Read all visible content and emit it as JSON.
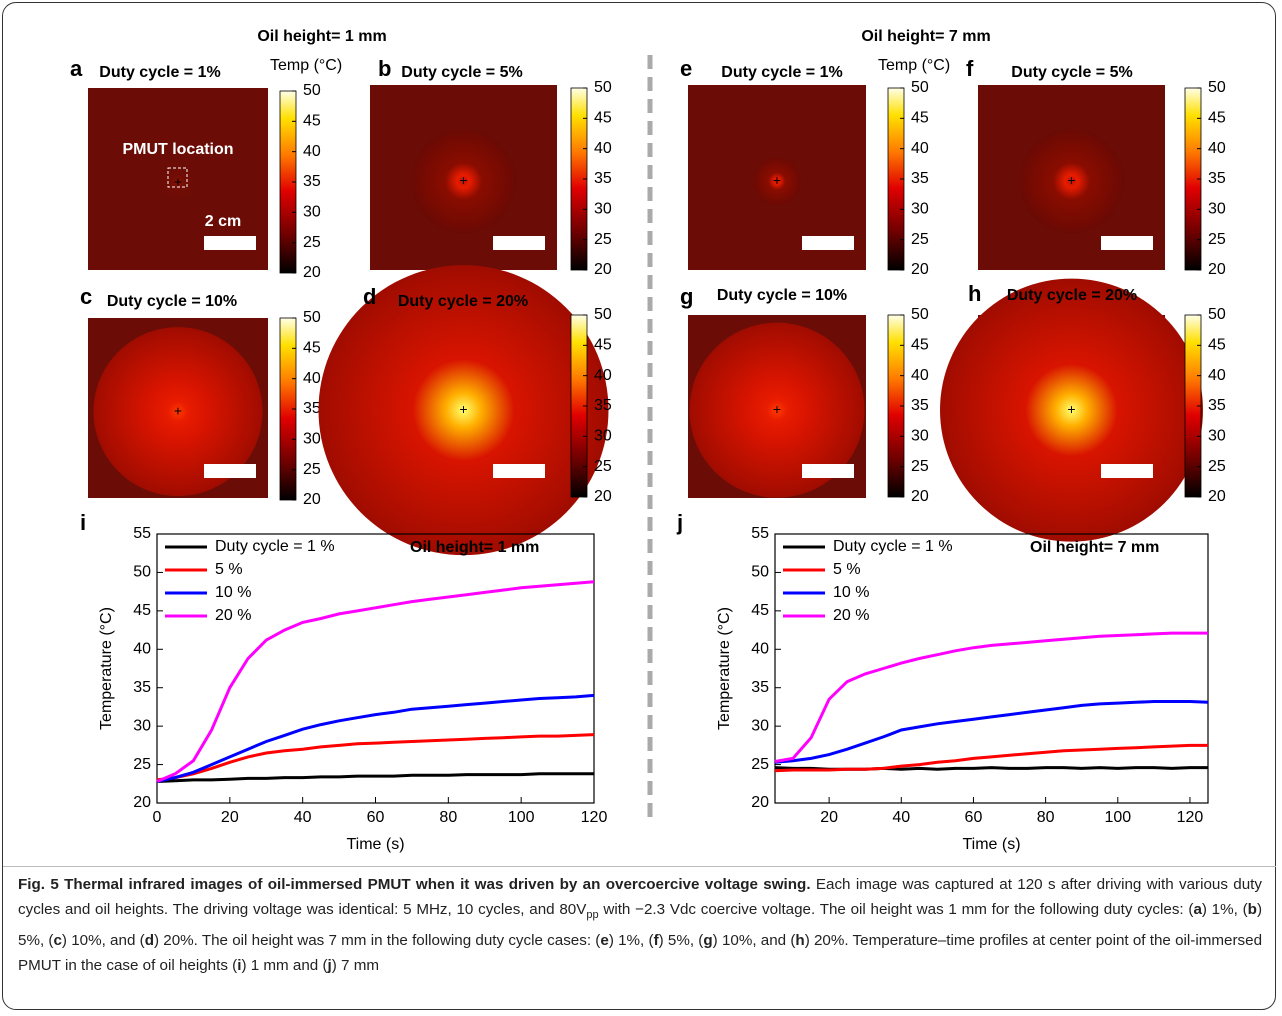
{
  "header": {
    "left": "Oil height= 1 mm",
    "right": "Oil height= 7 mm"
  },
  "panels": [
    {
      "label": "a",
      "title": "Duty cycle = 1%",
      "colorbar_label": "Temp (°C)",
      "annotation": "PMUT location",
      "scale_bar": "2 cm",
      "colorbar_lim": [
        20,
        50
      ],
      "colorbar_ticks": [
        20,
        25,
        30,
        35,
        40,
        45,
        50
      ]
    },
    {
      "label": "b",
      "title": "Duty cycle = 5%",
      "colorbar_lim": [
        20,
        50
      ],
      "colorbar_ticks": [
        20,
        25,
        30,
        35,
        40,
        45,
        50
      ]
    },
    {
      "label": "c",
      "title": "Duty cycle = 10%",
      "colorbar_lim": [
        20,
        50
      ],
      "colorbar_ticks": [
        20,
        25,
        30,
        35,
        40,
        45,
        50
      ]
    },
    {
      "label": "d",
      "title": "Duty cycle = 20%",
      "colorbar_lim": [
        20,
        50
      ],
      "colorbar_ticks": [
        20,
        25,
        30,
        35,
        40,
        45,
        50
      ]
    },
    {
      "label": "e",
      "title": "Duty cycle = 1%",
      "colorbar_label": "Temp (°C)",
      "colorbar_lim": [
        20,
        50
      ],
      "colorbar_ticks": [
        20,
        25,
        30,
        35,
        40,
        45,
        50
      ]
    },
    {
      "label": "f",
      "title": "Duty cycle = 5%",
      "colorbar_lim": [
        20,
        50
      ],
      "colorbar_ticks": [
        20,
        25,
        30,
        35,
        40,
        45,
        50
      ]
    },
    {
      "label": "g",
      "title": "Duty cycle = 10%",
      "colorbar_lim": [
        20,
        50
      ],
      "colorbar_ticks": [
        20,
        25,
        30,
        35,
        40,
        45,
        50
      ]
    },
    {
      "label": "h",
      "title": "Duty cycle = 20%",
      "colorbar_lim": [
        20,
        50
      ],
      "colorbar_ticks": [
        20,
        25,
        30,
        35,
        40,
        45,
        50
      ]
    }
  ],
  "chart_data": [
    {
      "type": "line",
      "label": "i",
      "annotation": "Oil height= 1 mm",
      "xlabel": "Time (s)",
      "ylabel": "Temperature (°C)",
      "legend": "upper left",
      "xlim": [
        0,
        120
      ],
      "ylim": [
        20,
        55
      ],
      "xticks": [
        0,
        20,
        40,
        60,
        80,
        100,
        120
      ],
      "yticks": [
        20,
        25,
        30,
        35,
        40,
        45,
        50,
        55
      ],
      "x": [
        0,
        5,
        10,
        15,
        20,
        25,
        30,
        35,
        40,
        45,
        50,
        55,
        60,
        65,
        70,
        75,
        80,
        85,
        90,
        95,
        100,
        105,
        110,
        115,
        120
      ],
      "series": [
        {
          "name": "Duty cycle = 1 %",
          "color": "#000000",
          "values": [
            22.8,
            22.9,
            23.0,
            23.0,
            23.1,
            23.2,
            23.2,
            23.3,
            23.3,
            23.4,
            23.4,
            23.5,
            23.5,
            23.5,
            23.6,
            23.6,
            23.6,
            23.7,
            23.7,
            23.7,
            23.7,
            23.8,
            23.8,
            23.8,
            23.8
          ]
        },
        {
          "name": "5 %",
          "color": "#ff0000",
          "values": [
            23.0,
            23.3,
            23.8,
            24.5,
            25.3,
            26.0,
            26.5,
            26.8,
            27.0,
            27.3,
            27.5,
            27.7,
            27.8,
            27.9,
            28.0,
            28.1,
            28.2,
            28.3,
            28.4,
            28.5,
            28.6,
            28.7,
            28.7,
            28.8,
            28.9
          ]
        },
        {
          "name": "10 %",
          "color": "#0000ff",
          "values": [
            22.8,
            23.3,
            24.0,
            25.0,
            26.0,
            27.0,
            28.0,
            28.8,
            29.6,
            30.2,
            30.7,
            31.1,
            31.5,
            31.8,
            32.2,
            32.4,
            32.6,
            32.8,
            33.0,
            33.2,
            33.4,
            33.6,
            33.7,
            33.8,
            34.0
          ]
        },
        {
          "name": "20 %",
          "color": "#ff00ff",
          "values": [
            22.8,
            23.8,
            25.5,
            29.5,
            35.0,
            38.8,
            41.2,
            42.5,
            43.5,
            44.0,
            44.6,
            45.0,
            45.4,
            45.8,
            46.2,
            46.5,
            46.8,
            47.1,
            47.4,
            47.7,
            48.0,
            48.2,
            48.4,
            48.6,
            48.8
          ]
        }
      ]
    },
    {
      "type": "line",
      "label": "j",
      "annotation": "Oil height= 7 mm",
      "xlabel": "Time (s)",
      "ylabel": "Temperature (°C)",
      "legend": "upper left",
      "xlim": [
        5,
        125
      ],
      "ylim": [
        20,
        55
      ],
      "xticks": [
        20,
        40,
        60,
        80,
        100,
        120
      ],
      "yticks": [
        20,
        25,
        30,
        35,
        40,
        45,
        50,
        55
      ],
      "x": [
        5,
        10,
        15,
        20,
        25,
        30,
        35,
        40,
        45,
        50,
        55,
        60,
        65,
        70,
        75,
        80,
        85,
        90,
        95,
        100,
        105,
        110,
        115,
        120,
        125
      ],
      "series": [
        {
          "name": "Duty cycle = 1 %",
          "color": "#000000",
          "values": [
            24.6,
            24.5,
            24.5,
            24.4,
            24.4,
            24.4,
            24.5,
            24.4,
            24.5,
            24.4,
            24.5,
            24.5,
            24.6,
            24.5,
            24.5,
            24.6,
            24.6,
            24.5,
            24.6,
            24.5,
            24.6,
            24.6,
            24.5,
            24.6,
            24.6
          ]
        },
        {
          "name": "5 %",
          "color": "#ff0000",
          "values": [
            24.2,
            24.3,
            24.3,
            24.3,
            24.4,
            24.4,
            24.5,
            24.8,
            25.0,
            25.3,
            25.5,
            25.8,
            26.0,
            26.2,
            26.4,
            26.6,
            26.8,
            26.9,
            27.0,
            27.1,
            27.2,
            27.3,
            27.4,
            27.5,
            27.5
          ]
        },
        {
          "name": "10 %",
          "color": "#0000ff",
          "values": [
            25.3,
            25.5,
            25.8,
            26.3,
            27.0,
            27.8,
            28.6,
            29.5,
            29.9,
            30.3,
            30.6,
            30.9,
            31.2,
            31.5,
            31.8,
            32.1,
            32.4,
            32.7,
            32.9,
            33.0,
            33.1,
            33.2,
            33.2,
            33.2,
            33.1
          ]
        },
        {
          "name": "20 %",
          "color": "#ff00ff",
          "values": [
            25.4,
            25.8,
            28.5,
            33.5,
            35.8,
            36.8,
            37.5,
            38.2,
            38.8,
            39.3,
            39.8,
            40.2,
            40.5,
            40.7,
            40.9,
            41.1,
            41.3,
            41.5,
            41.7,
            41.8,
            41.9,
            42.0,
            42.1,
            42.1,
            42.1
          ]
        }
      ]
    }
  ],
  "caption": {
    "runs": [
      {
        "text": "Fig. 5 Thermal infrared images of oil-immersed PMUT when it was driven by an overcoercive voltage swing.",
        "style": "bold"
      },
      {
        "text": " Each image was captured at 120 s after driving with various duty cycles and oil heights. The driving voltage was identical: 5 MHz, 10 cycles, and 80V"
      },
      {
        "text": "pp",
        "style": "sub"
      },
      {
        "text": " with −2.3 Vdc coercive voltage. The oil height was 1 mm for the following duty cycles: ("
      },
      {
        "text": "a",
        "style": "bold"
      },
      {
        "text": ") 1%, ("
      },
      {
        "text": "b",
        "style": "bold"
      },
      {
        "text": ") 5%, ("
      },
      {
        "text": "c",
        "style": "bold"
      },
      {
        "text": ") 10%, and ("
      },
      {
        "text": "d",
        "style": "bold"
      },
      {
        "text": ") 20%. The oil height was 7 mm in the following duty cycle cases: ("
      },
      {
        "text": "e",
        "style": "bold"
      },
      {
        "text": ") 1%, ("
      },
      {
        "text": "f",
        "style": "bold"
      },
      {
        "text": ") 5%, ("
      },
      {
        "text": "g",
        "style": "bold"
      },
      {
        "text": ") 10%, and ("
      },
      {
        "text": "h",
        "style": "bold"
      },
      {
        "text": ") 20%. Temperature–time profiles at center point of the oil-immersed PMUT in the case of oil heights ("
      },
      {
        "text": "i",
        "style": "bold"
      },
      {
        "text": ") 1 mm and ("
      },
      {
        "text": "j",
        "style": "bold"
      },
      {
        "text": ") 7 mm"
      }
    ]
  }
}
